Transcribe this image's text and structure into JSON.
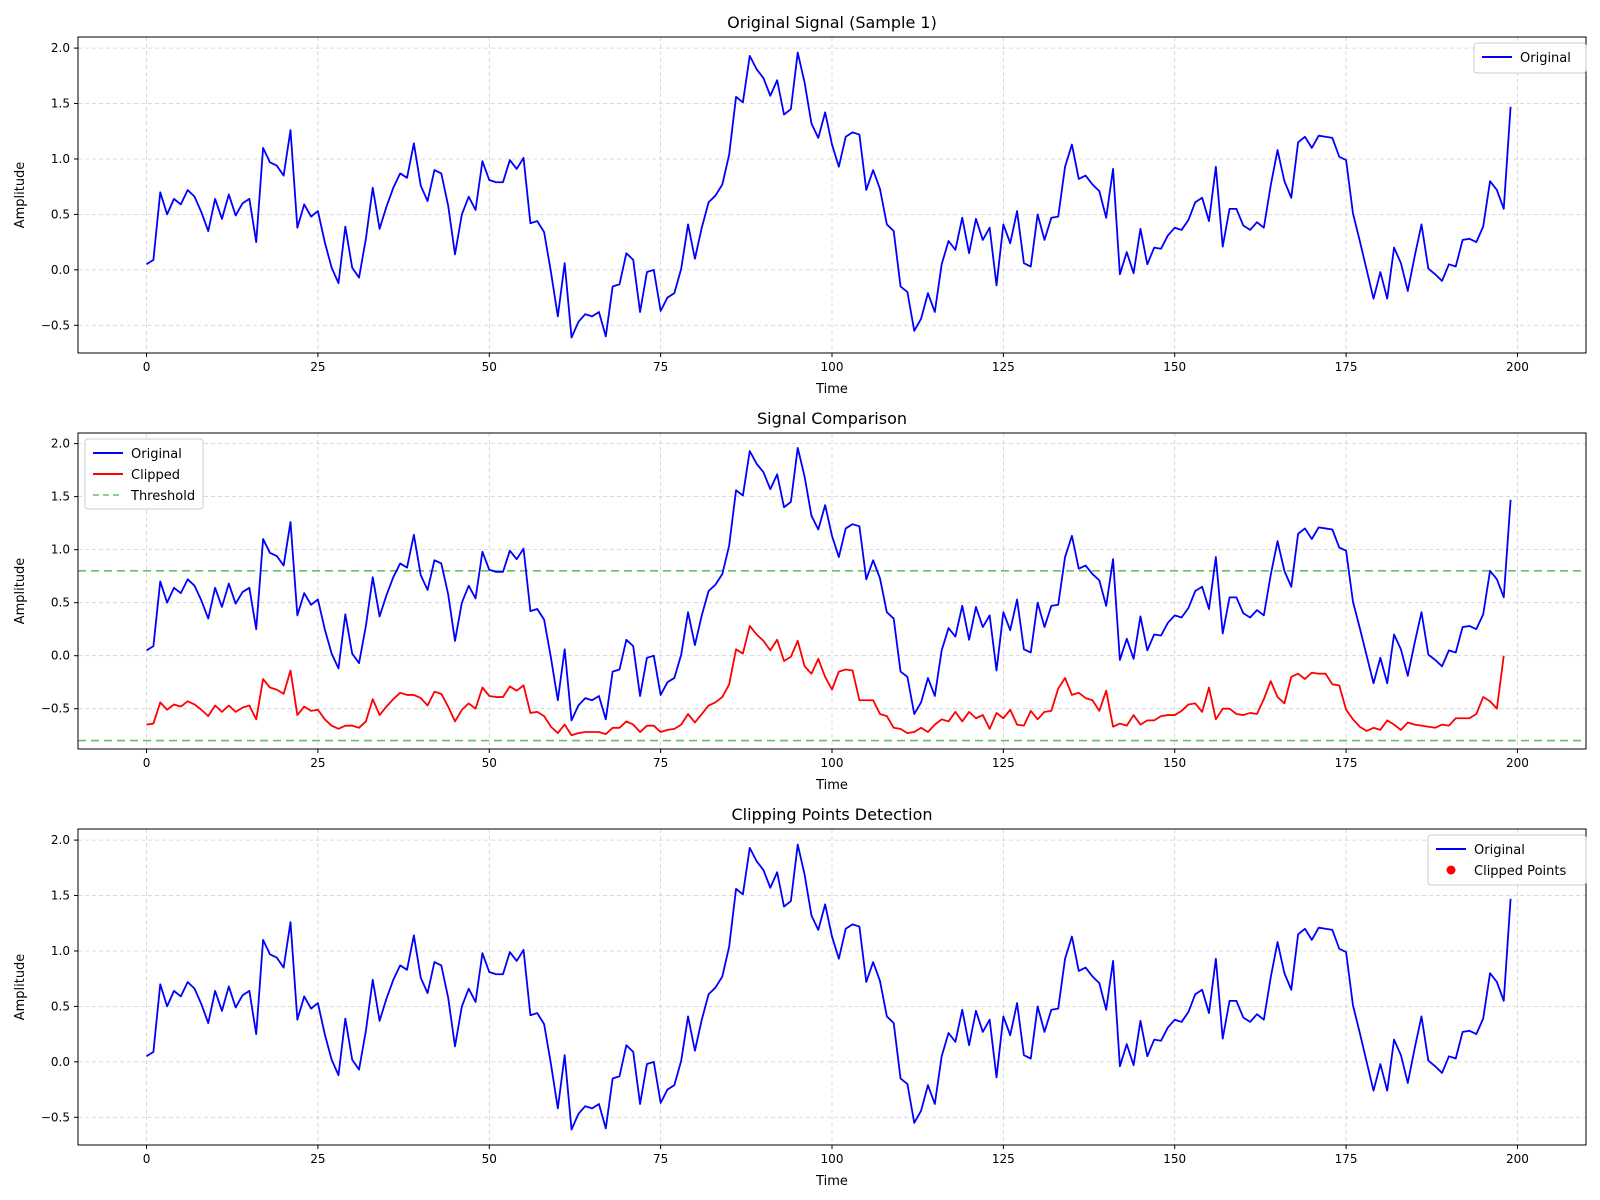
{
  "chart_data": [
    {
      "type": "line",
      "title": "Original Signal (Sample 1)",
      "xlabel": "Time",
      "ylabel": "Amplitude",
      "xlim": [
        -10,
        210
      ],
      "ylim": [
        -0.75,
        2.1
      ],
      "xticks": [
        0,
        25,
        50,
        75,
        100,
        125,
        150,
        175,
        200
      ],
      "yticks": [
        -0.5,
        0.0,
        0.5,
        1.0,
        1.5,
        2.0
      ],
      "grid": true,
      "legend": {
        "placement": "top-right",
        "entries": [
          "Original"
        ]
      },
      "series": [
        {
          "name": "Original",
          "color": "#0000ff",
          "source": "original"
        }
      ]
    },
    {
      "type": "line",
      "title": "Signal Comparison",
      "xlabel": "Time",
      "ylabel": "Amplitude",
      "xlim": [
        -10,
        210
      ],
      "ylim": [
        -0.88,
        2.1
      ],
      "xticks": [
        0,
        25,
        50,
        75,
        100,
        125,
        150,
        175,
        200
      ],
      "yticks": [
        -0.5,
        0.0,
        0.5,
        1.0,
        1.5,
        2.0
      ],
      "grid": true,
      "legend": {
        "placement": "top-left",
        "entries": [
          "Original",
          "Clipped",
          "Threshold"
        ]
      },
      "series": [
        {
          "name": "Original",
          "color": "#0000ff",
          "source": "original"
        },
        {
          "name": "Clipped",
          "color": "#ff0000",
          "source": "clipped"
        }
      ],
      "thresholds": {
        "name": "Threshold",
        "color": "#6abf69",
        "values": [
          0.8,
          -0.8
        ]
      }
    },
    {
      "type": "line",
      "title": "Clipping Points Detection",
      "xlabel": "Time",
      "ylabel": "Amplitude",
      "xlim": [
        -10,
        210
      ],
      "ylim": [
        -0.75,
        2.1
      ],
      "xticks": [
        0,
        25,
        50,
        75,
        100,
        125,
        150,
        175,
        200
      ],
      "yticks": [
        -0.5,
        0.0,
        0.5,
        1.0,
        1.5,
        2.0
      ],
      "grid": true,
      "legend": {
        "placement": "top-right",
        "entries": [
          "Original",
          "Clipped Points"
        ]
      },
      "series": [
        {
          "name": "Original",
          "color": "#0000ff",
          "source": "original"
        }
      ],
      "markers": {
        "name": "Clipped Points",
        "color": "#ff0000",
        "points": []
      }
    }
  ],
  "signals": {
    "original": [
      0.05,
      0.09,
      0.7,
      0.5,
      0.64,
      0.59,
      0.72,
      0.66,
      0.52,
      0.35,
      0.64,
      0.46,
      0.68,
      0.49,
      0.6,
      0.64,
      0.25,
      1.1,
      0.97,
      0.94,
      0.85,
      1.26,
      0.38,
      0.59,
      0.48,
      0.53,
      0.25,
      0.02,
      -0.12,
      0.39,
      0.02,
      -0.07,
      0.28,
      0.74,
      0.37,
      0.57,
      0.74,
      0.87,
      0.83,
      1.14,
      0.76,
      0.62,
      0.9,
      0.87,
      0.58,
      0.14,
      0.5,
      0.66,
      0.54,
      0.98,
      0.81,
      0.79,
      0.79,
      0.99,
      0.91,
      1.01,
      0.42,
      0.44,
      0.34,
      -0.02,
      -0.42,
      0.06,
      -0.61,
      -0.47,
      -0.4,
      -0.42,
      -0.38,
      -0.6,
      -0.15,
      -0.13,
      0.15,
      0.09,
      -0.38,
      -0.02,
      0.0,
      -0.37,
      -0.25,
      -0.21,
      0.01,
      0.41,
      0.1,
      0.38,
      0.61,
      0.67,
      0.77,
      1.04,
      1.56,
      1.51,
      1.93,
      1.81,
      1.73,
      1.57,
      1.71,
      1.4,
      1.45,
      1.96,
      1.69,
      1.32,
      1.19,
      1.42,
      1.13,
      0.93,
      1.2,
      1.24,
      1.22,
      0.72,
      0.9,
      0.73,
      0.41,
      0.35,
      -0.15,
      -0.2,
      -0.55,
      -0.44,
      -0.21,
      -0.38,
      0.05,
      0.26,
      0.18,
      0.47,
      0.15,
      0.46,
      0.27,
      0.38,
      -0.14,
      0.41,
      0.24,
      0.53,
      0.06,
      0.03,
      0.5,
      0.27,
      0.47,
      0.48,
      0.93,
      1.13,
      0.82,
      0.85,
      0.77,
      0.71,
      0.47,
      0.91,
      -0.04,
      0.16,
      -0.03,
      0.37,
      0.05,
      0.2,
      0.19,
      0.31,
      0.38,
      0.36,
      0.45,
      0.61,
      0.65,
      0.44,
      0.93,
      0.21,
      0.55,
      0.55,
      0.4,
      0.36,
      0.43,
      0.38,
      0.76,
      1.08,
      0.8,
      0.65,
      1.15,
      1.2,
      1.1,
      1.21,
      1.2,
      1.19,
      1.02,
      0.99,
      0.51,
      0.26,
      0.0,
      -0.26,
      -0.02,
      -0.26,
      0.2,
      0.06,
      -0.19,
      0.12,
      0.41,
      0.01,
      -0.04,
      -0.1,
      0.05,
      0.03,
      0.27,
      0.28,
      0.25,
      0.39,
      0.8,
      0.72,
      0.55,
      1.47
    ],
    "clipped": [
      -0.65,
      -0.64,
      -0.44,
      -0.51,
      -0.46,
      -0.48,
      -0.43,
      -0.46,
      -0.51,
      -0.57,
      -0.47,
      -0.53,
      -0.47,
      -0.53,
      -0.49,
      -0.47,
      -0.6,
      -0.22,
      -0.3,
      -0.32,
      -0.36,
      -0.14,
      -0.56,
      -0.48,
      -0.52,
      -0.51,
      -0.6,
      -0.66,
      -0.69,
      -0.66,
      -0.66,
      -0.68,
      -0.62,
      -0.41,
      -0.56,
      -0.48,
      -0.41,
      -0.35,
      -0.37,
      -0.37,
      -0.4,
      -0.47,
      -0.34,
      -0.36,
      -0.48,
      -0.62,
      -0.51,
      -0.45,
      -0.5,
      -0.3,
      -0.38,
      -0.39,
      -0.39,
      -0.29,
      -0.33,
      -0.28,
      -0.54,
      -0.53,
      -0.57,
      -0.67,
      -0.73,
      -0.65,
      -0.75,
      -0.73,
      -0.72,
      -0.72,
      -0.72,
      -0.74,
      -0.68,
      -0.68,
      -0.62,
      -0.65,
      -0.72,
      -0.66,
      -0.66,
      -0.72,
      -0.7,
      -0.69,
      -0.65,
      -0.55,
      -0.63,
      -0.55,
      -0.47,
      -0.44,
      -0.39,
      -0.27,
      0.06,
      0.02,
      0.28,
      0.2,
      0.14,
      0.05,
      0.15,
      -0.05,
      -0.01,
      0.14,
      -0.1,
      -0.17,
      -0.03,
      -0.2,
      -0.32,
      -0.15,
      -0.13,
      -0.14,
      -0.42,
      -0.42,
      -0.42,
      -0.55,
      -0.57,
      -0.68,
      -0.69,
      -0.73,
      -0.72,
      -0.68,
      -0.72,
      -0.65,
      -0.6,
      -0.62,
      -0.53,
      -0.62,
      -0.53,
      -0.59,
      -0.56,
      -0.69,
      -0.54,
      -0.59,
      -0.51,
      -0.65,
      -0.66,
      -0.52,
      -0.6,
      -0.53,
      -0.52,
      -0.31,
      -0.21,
      -0.37,
      -0.35,
      -0.4,
      -0.42,
      -0.52,
      -0.33,
      -0.67,
      -0.64,
      -0.66,
      -0.56,
      -0.65,
      -0.61,
      -0.61,
      -0.57,
      -0.56,
      -0.56,
      -0.52,
      -0.46,
      -0.45,
      -0.53,
      -0.3,
      -0.6,
      -0.5,
      -0.5,
      -0.55,
      -0.56,
      -0.54,
      -0.55,
      -0.41,
      -0.24,
      -0.39,
      -0.45,
      -0.2,
      -0.17,
      -0.22,
      -0.16,
      -0.17,
      -0.17,
      -0.27,
      -0.28,
      -0.51,
      -0.6,
      -0.67,
      -0.71,
      -0.68,
      -0.7,
      -0.61,
      -0.65,
      -0.7,
      -0.63,
      -0.65,
      -0.66,
      -0.67,
      -0.68,
      -0.65,
      -0.66,
      -0.59,
      -0.59,
      -0.59,
      -0.55,
      -0.39,
      -0.43,
      -0.5,
      0.0
    ]
  }
}
